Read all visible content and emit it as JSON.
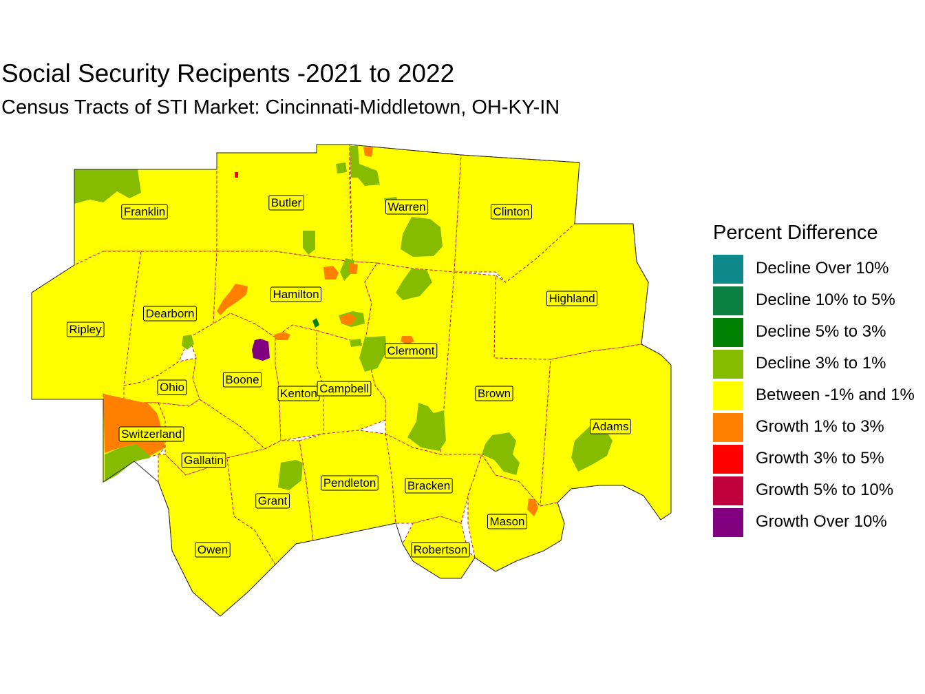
{
  "title": "Social Security Recipents -2021 to 2022",
  "subtitle": "Census Tracts of STI Market: Cincinnati-Middletown, OH-KY-IN",
  "legend": {
    "title": "Percent Difference",
    "items": [
      {
        "label": "Decline Over 10%",
        "color": "#0e8a8a"
      },
      {
        "label": "Decline 10% to 5%",
        "color": "#0b8040"
      },
      {
        "label": "Decline 5% to 3%",
        "color": "#008000"
      },
      {
        "label": "Decline 3% to 1%",
        "color": "#86bc00"
      },
      {
        "label": "Between -1% and 1%",
        "color": "#ffff00"
      },
      {
        "label": "Growth 1% to 3%",
        "color": "#ff8000"
      },
      {
        "label": "Growth 3% to 5%",
        "color": "#ff0000"
      },
      {
        "label": "Growth 5% to 10%",
        "color": "#c0003c"
      },
      {
        "label": "Growth Over 10%",
        "color": "#800080"
      }
    ]
  },
  "counties": [
    {
      "name": "Franklin"
    },
    {
      "name": "Butler"
    },
    {
      "name": "Warren"
    },
    {
      "name": "Clinton"
    },
    {
      "name": "Highland"
    },
    {
      "name": "Hamilton"
    },
    {
      "name": "Dearborn"
    },
    {
      "name": "Ripley"
    },
    {
      "name": "Clermont"
    },
    {
      "name": "Boone"
    },
    {
      "name": "Ohio"
    },
    {
      "name": "Kenton"
    },
    {
      "name": "Campbell"
    },
    {
      "name": "Brown"
    },
    {
      "name": "Adams"
    },
    {
      "name": "Switzerland"
    },
    {
      "name": "Gallatin"
    },
    {
      "name": "Grant"
    },
    {
      "name": "Pendleton"
    },
    {
      "name": "Bracken"
    },
    {
      "name": "Mason"
    },
    {
      "name": "Owen"
    },
    {
      "name": "Robertson"
    }
  ]
}
